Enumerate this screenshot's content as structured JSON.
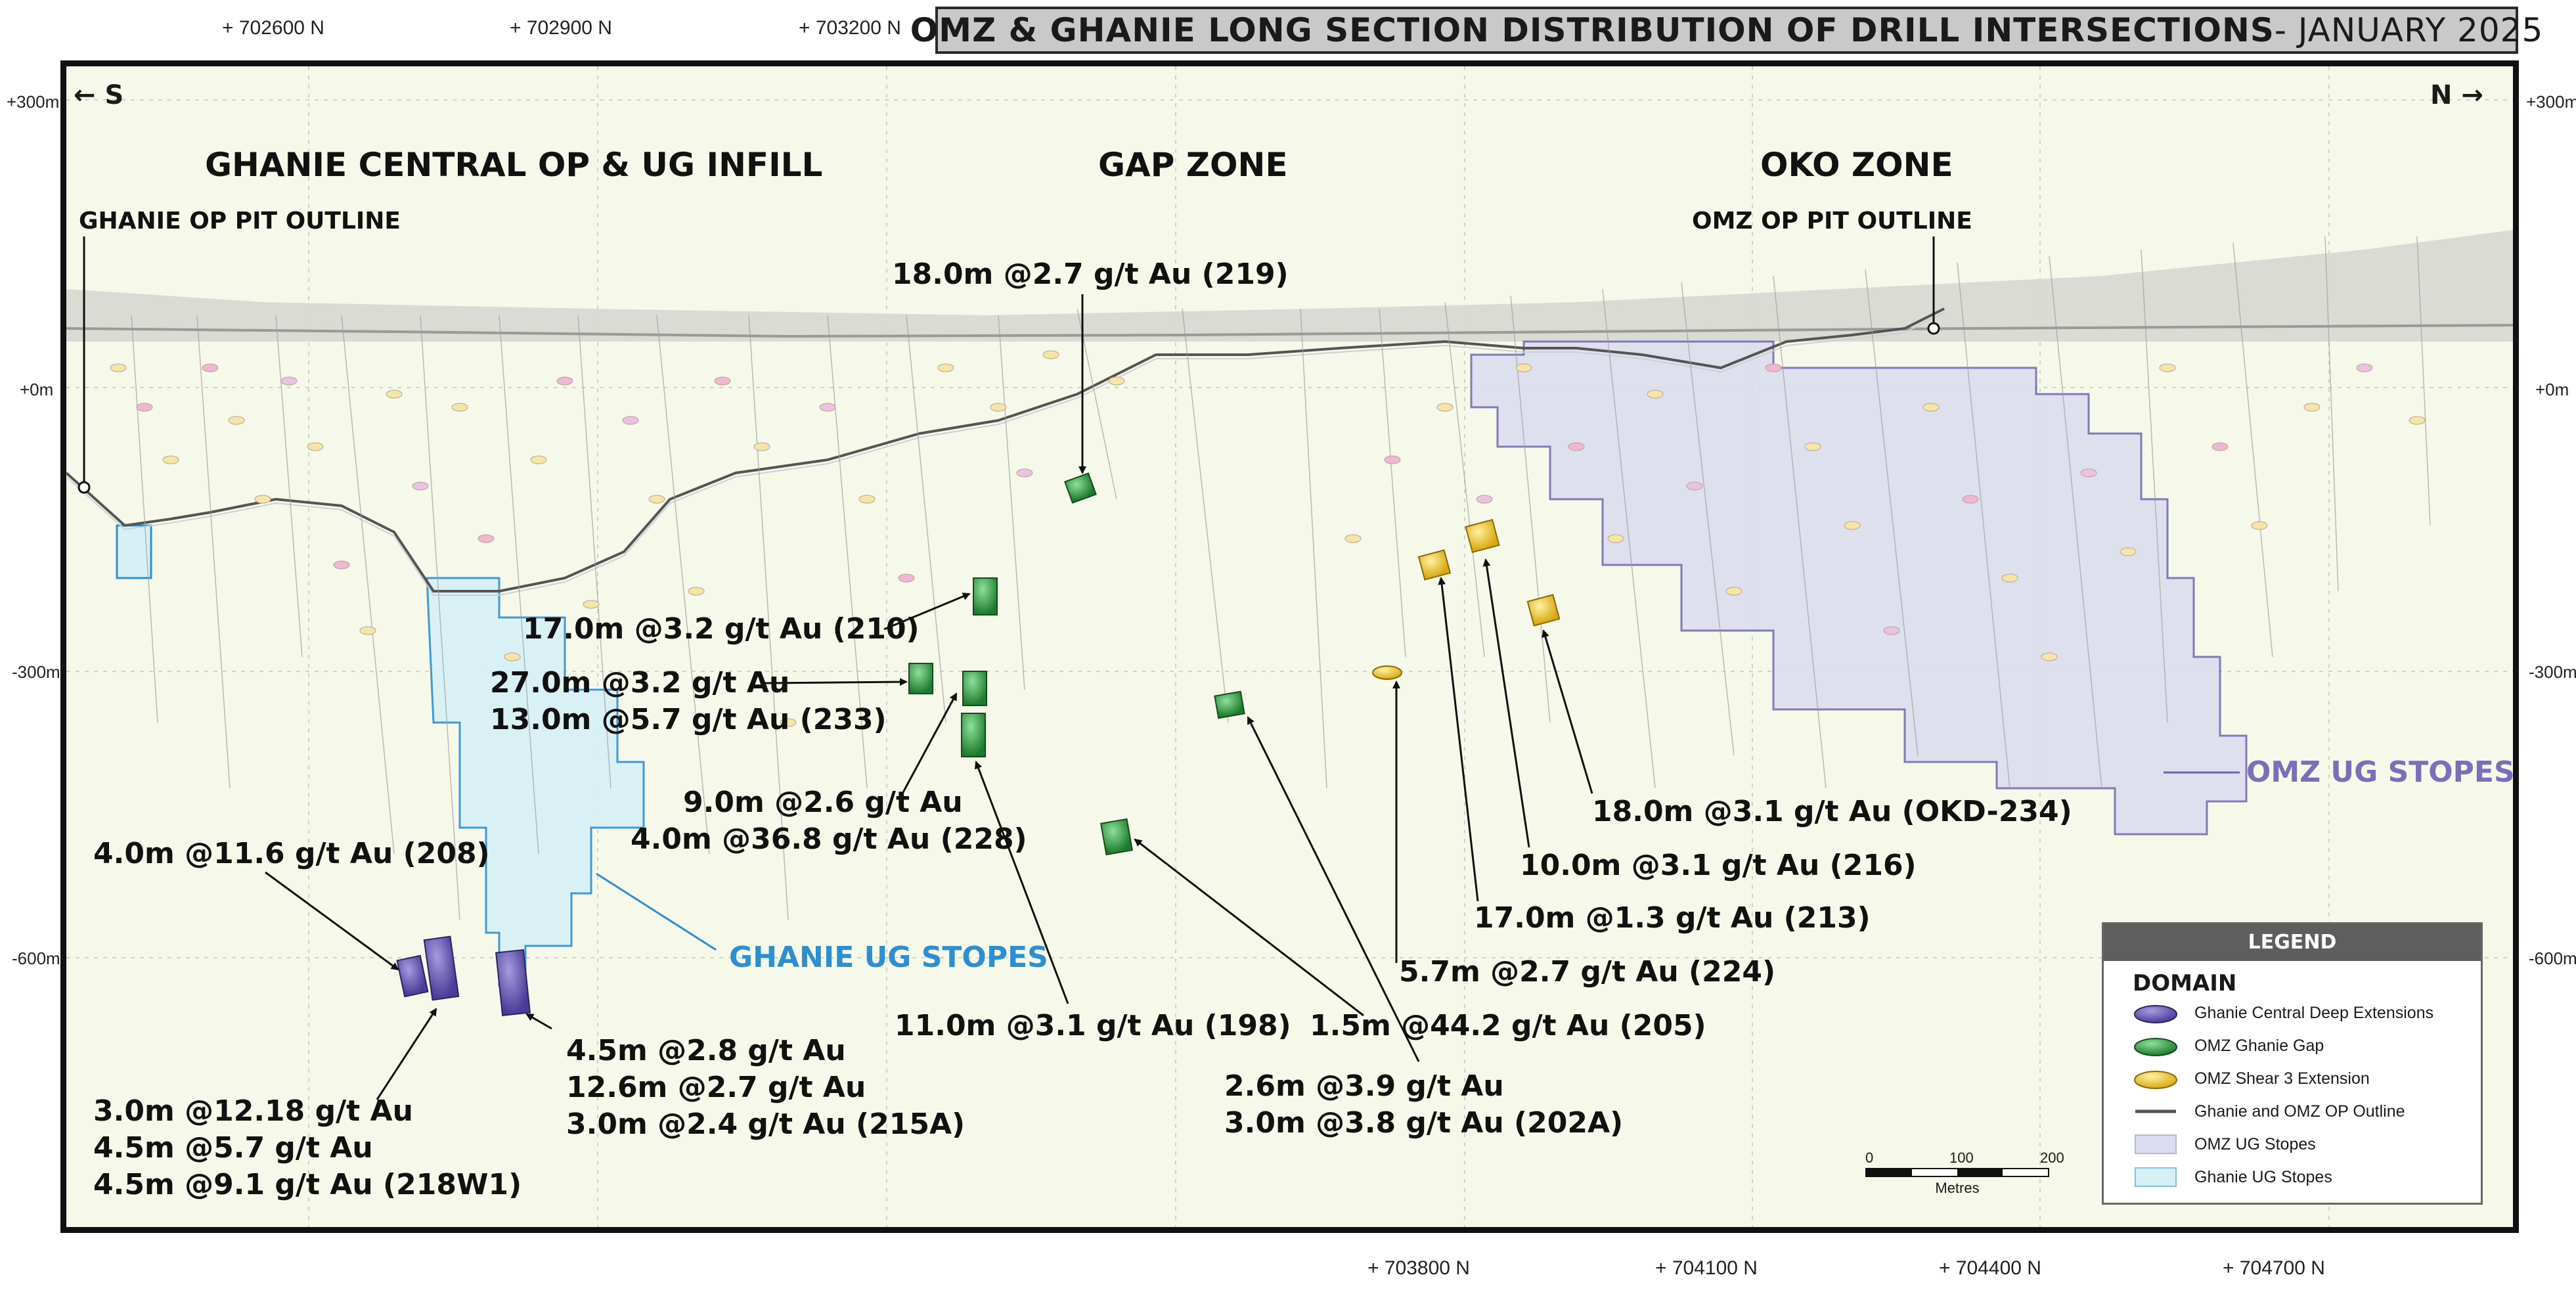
{
  "title": {
    "main": "OMZ & GHANIE LONG SECTION DISTRIBUTION OF DRILL INTERSECTIONS",
    "date": " - JANUARY 2025"
  },
  "northings_top": [
    "+ 702600 N",
    "+ 702900 N",
    "+ 703200 N"
  ],
  "northings_bottom": [
    "+ 703800 N",
    "+ 704100 N",
    "+ 704400 N",
    "+ 704700 N"
  ],
  "elevations": [
    "+300m",
    "+0m",
    "-300m",
    "-600m"
  ],
  "direction": {
    "south": "S",
    "north": "N"
  },
  "zones": {
    "ghanie": "GHANIE CENTRAL OP & UG INFILL",
    "gap": "GAP ZONE",
    "oko": "OKO ZONE"
  },
  "pit_labels": {
    "ghanie": "GHANIE OP PIT OUTLINE",
    "omz": "OMZ OP PIT OUTLINE"
  },
  "stope_labels": {
    "omz": "OMZ UG STOPES",
    "ghanie": "GHANIE UG STOPES"
  },
  "colors": {
    "omz_stope": "#7a6fb8",
    "ghanie_stope": "#2d8fd0",
    "deep_ext": "#6a5bb0",
    "gap": "#3aa348",
    "shear3": "#e9c02a",
    "frame_bg": "#f6f8e9"
  },
  "annotations": [
    {
      "id": "a219",
      "lines": [
        "18.0m @2.7 g/t Au (219)"
      ]
    },
    {
      "id": "a210",
      "lines": [
        "17.0m @3.2 g/t Au (210)"
      ]
    },
    {
      "id": "a233",
      "lines": [
        "27.0m @3.2 g/t Au",
        "13.0m @5.7 g/t Au (233)"
      ]
    },
    {
      "id": "a228",
      "lines": [
        "9.0m @2.6 g/t Au",
        "4.0m @36.8 g/t Au (228)"
      ]
    },
    {
      "id": "a208",
      "lines": [
        "4.0m @11.6 g/t Au (208)"
      ]
    },
    {
      "id": "a218",
      "lines": [
        "3.0m @12.18 g/t Au",
        "4.5m @5.7 g/t Au",
        "4.5m @9.1 g/t Au (218W1)"
      ]
    },
    {
      "id": "a215",
      "lines": [
        "4.5m @2.8 g/t Au",
        "12.6m @2.7 g/t Au",
        "3.0m @2.4 g/t Au (215A)"
      ]
    },
    {
      "id": "a198",
      "lines": [
        "11.0m @3.1 g/t Au (198)"
      ]
    },
    {
      "id": "a205",
      "lines": [
        "1.5m @44.2 g/t Au (205)"
      ]
    },
    {
      "id": "a202",
      "lines": [
        "2.6m @3.9 g/t Au",
        "3.0m @3.8 g/t Au (202A)"
      ]
    },
    {
      "id": "a224",
      "lines": [
        "5.7m @2.7 g/t Au (224)"
      ]
    },
    {
      "id": "a213",
      "lines": [
        "17.0m @1.3 g/t Au (213)"
      ]
    },
    {
      "id": "a216",
      "lines": [
        "10.0m @3.1 g/t Au (216)"
      ]
    },
    {
      "id": "a234",
      "lines": [
        "18.0m @3.1 g/t Au (OKD-234)"
      ]
    }
  ],
  "legend": {
    "header": "LEGEND",
    "domain": "DOMAIN",
    "items": [
      {
        "label": "Ghanie Central Deep Extensions",
        "icon": "purple-disc-icon"
      },
      {
        "label": "OMZ Ghanie Gap",
        "icon": "green-disc-icon"
      },
      {
        "label": "OMZ Shear 3 Extension",
        "icon": "yellow-disc-icon"
      },
      {
        "label": "Ghanie and OMZ OP Outline",
        "icon": "grey-line-icon"
      },
      {
        "label": "OMZ UG Stopes",
        "icon": "lavender-box-icon"
      },
      {
        "label": "Ghanie UG Stopes",
        "icon": "light-blue-box-icon"
      }
    ]
  },
  "scale_bar": {
    "ticks": [
      "0",
      "100",
      "200"
    ],
    "unit": "Metres"
  }
}
